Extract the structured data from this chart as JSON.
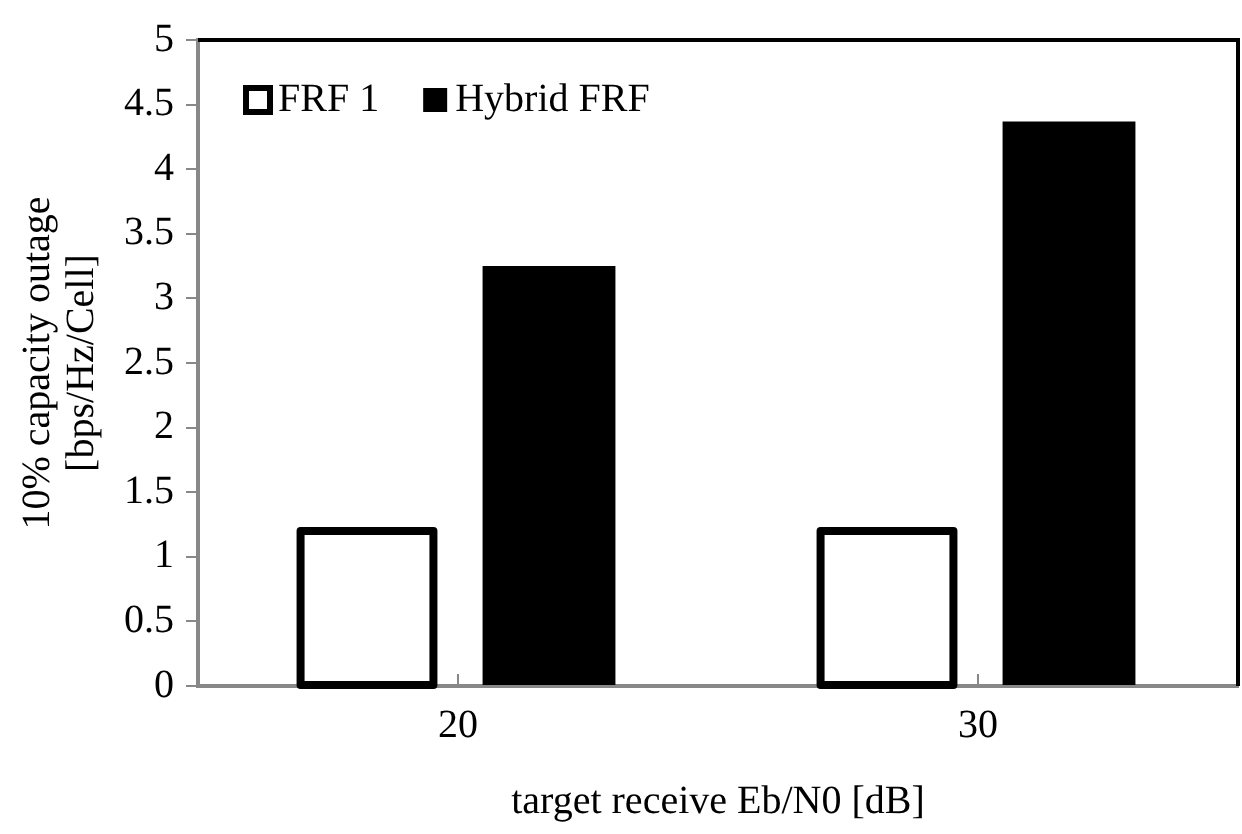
{
  "chart_data": {
    "type": "bar",
    "xlabel": "target receive Eb/N0 [dB]",
    "ylabel": "10% capacity outage\n[bps/Hz/Cell]",
    "categories": [
      "20",
      "30"
    ],
    "series": [
      {
        "name": "FRF 1",
        "color": "#ffffff",
        "values": [
          1.2,
          1.2
        ]
      },
      {
        "name": "Hybrid FRF",
        "color": "#000000",
        "values": [
          3.25,
          4.37
        ]
      }
    ],
    "ylim": [
      0,
      5
    ],
    "yticks": [
      0,
      0.5,
      1,
      1.5,
      2,
      2.5,
      3,
      3.5,
      4,
      4.5,
      5
    ],
    "grid": false,
    "legend": "top left"
  }
}
